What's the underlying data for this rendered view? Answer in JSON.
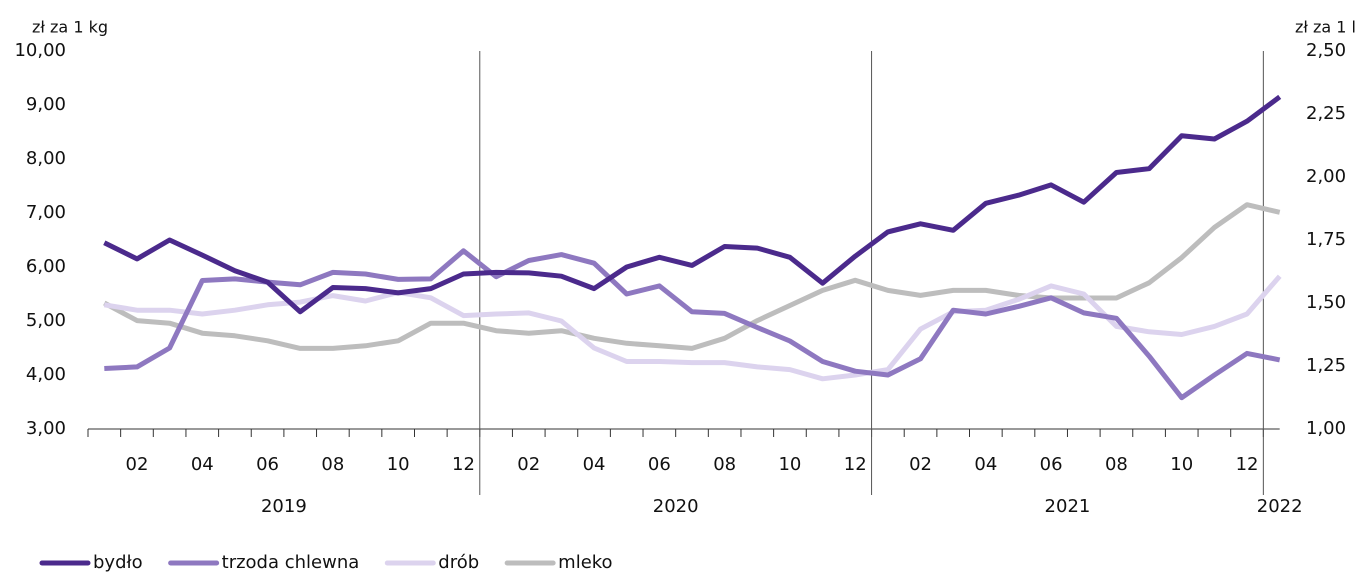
{
  "chart_data": {
    "type": "line",
    "y_label": "zł za 1 kg",
    "y2_label": "zł za 1 l",
    "categories": [
      null,
      "02",
      null,
      "04",
      null,
      "06",
      null,
      "08",
      null,
      "10",
      null,
      "12",
      null,
      "02",
      null,
      "04",
      null,
      "06",
      null,
      "08",
      null,
      "10",
      null,
      "12",
      null,
      "02",
      null,
      "04",
      null,
      "06",
      null,
      "08",
      null,
      "10",
      null,
      "12",
      null
    ],
    "years": [
      "2019",
      "2020",
      "2021",
      "2022"
    ],
    "series": [
      {
        "name": "bydło",
        "color": "#4b2a8c",
        "values": [
          6.45,
          6.15,
          6.5,
          6.22,
          5.93,
          5.72,
          5.17,
          5.62,
          5.6,
          5.52,
          5.6,
          5.87,
          5.9,
          5.89,
          5.83,
          5.6,
          6.0,
          6.18,
          6.03,
          6.38,
          6.35,
          6.18,
          5.7,
          6.2,
          6.65,
          6.8,
          6.68,
          7.18,
          7.33,
          7.52,
          7.2,
          7.75,
          7.82,
          8.43,
          8.37,
          8.7,
          9.15
        ]
      },
      {
        "name": "trzoda chlewna",
        "color": "#8e78c0",
        "values": [
          4.12,
          4.15,
          4.5,
          5.75,
          5.78,
          5.72,
          5.67,
          5.9,
          5.87,
          5.77,
          5.78,
          6.3,
          5.82,
          6.12,
          6.23,
          6.07,
          5.5,
          5.65,
          5.17,
          5.14,
          4.88,
          4.63,
          4.25,
          4.07,
          4.0,
          4.3,
          5.2,
          5.13,
          5.27,
          5.43,
          5.15,
          5.05,
          4.35,
          3.58,
          4.0,
          4.4,
          4.28
        ]
      },
      {
        "name": "drób",
        "color": "#dcd3ee",
        "values": [
          5.3,
          5.2,
          5.2,
          5.13,
          5.2,
          5.3,
          5.35,
          5.47,
          5.37,
          5.53,
          5.43,
          5.1,
          5.13,
          5.15,
          5.0,
          4.5,
          4.25,
          4.25,
          4.23,
          4.23,
          4.15,
          4.1,
          3.93,
          4.0,
          4.1,
          4.85,
          5.17,
          5.2,
          5.4,
          5.65,
          5.5,
          4.9,
          4.8,
          4.75,
          4.9,
          5.13,
          5.83
        ]
      },
      {
        "name": "mleko",
        "color": "#bdbdbd",
        "axis": "y2",
        "values": [
          1.5,
          1.43,
          1.42,
          1.38,
          1.37,
          1.35,
          1.32,
          1.32,
          1.33,
          1.35,
          1.42,
          1.42,
          1.39,
          1.38,
          1.39,
          1.36,
          1.34,
          1.33,
          1.32,
          1.36,
          1.43,
          1.49,
          1.55,
          1.59,
          1.55,
          1.53,
          1.55,
          1.55,
          1.53,
          1.52,
          1.52,
          1.52,
          1.58,
          1.68,
          1.8,
          1.89,
          1.86
        ]
      }
    ],
    "ylim": [
      3,
      10
    ],
    "yticks": [
      {
        "value": 3,
        "label": "3,00"
      },
      {
        "value": 4,
        "label": "4,00"
      },
      {
        "value": 5,
        "label": "5,00"
      },
      {
        "value": 6,
        "label": "6,00"
      },
      {
        "value": 7,
        "label": "7,00"
      },
      {
        "value": 8,
        "label": "8,00"
      },
      {
        "value": 9,
        "label": "9,00"
      },
      {
        "value": 10,
        "label": "10,00"
      }
    ],
    "y2lim": [
      1,
      2.5
    ],
    "y2ticks": [
      {
        "value": 1,
        "label": "1,00"
      },
      {
        "value": 1.25,
        "label": "1,25"
      },
      {
        "value": 1.5,
        "label": "1,50"
      },
      {
        "value": 1.75,
        "label": "1,75"
      },
      {
        "value": 2,
        "label": "2,00"
      },
      {
        "value": 2.25,
        "label": "2,25"
      },
      {
        "value": 2.5,
        "label": "2,50"
      }
    ],
    "legend": "bottom-left"
  }
}
